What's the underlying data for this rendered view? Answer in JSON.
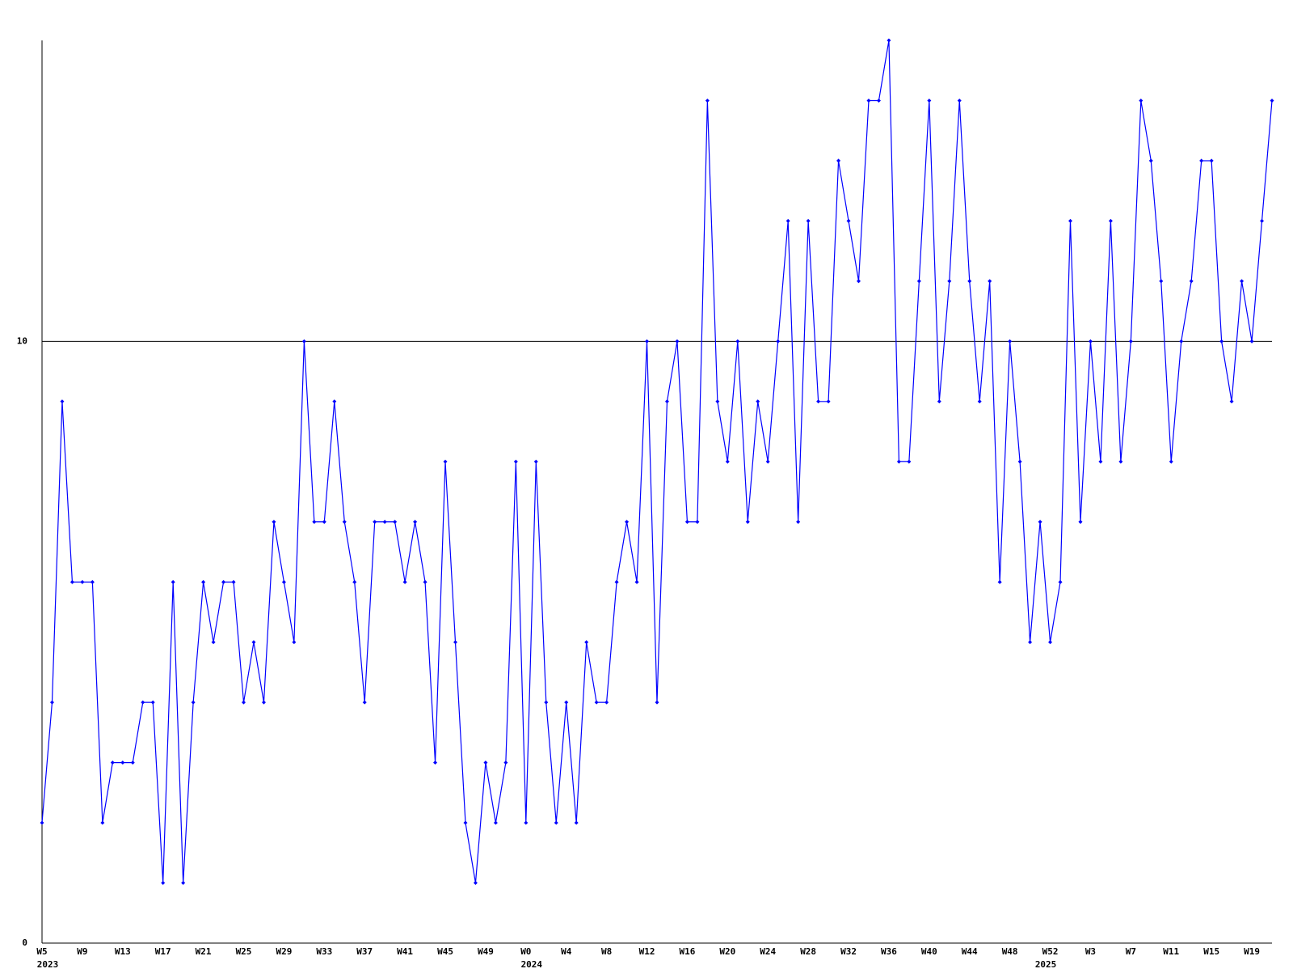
{
  "chart_data": {
    "type": "line",
    "categories": [
      "W5",
      null,
      null,
      null,
      "W9",
      null,
      null,
      null,
      "W13",
      null,
      null,
      null,
      "W17",
      null,
      null,
      null,
      "W21",
      null,
      null,
      null,
      "W25",
      null,
      null,
      null,
      "W29",
      null,
      null,
      null,
      "W33",
      null,
      null,
      null,
      "W37",
      null,
      null,
      null,
      "W41",
      null,
      null,
      null,
      "W45",
      null,
      null,
      null,
      "W49",
      null,
      null,
      null,
      "W0",
      null,
      null,
      null,
      "W4",
      null,
      null,
      null,
      "W8",
      null,
      null,
      null,
      "W12",
      null,
      null,
      null,
      "W16",
      null,
      null,
      null,
      "W20",
      null,
      null,
      null,
      "W24",
      null,
      null,
      null,
      "W28",
      null,
      null,
      null,
      "W32",
      null,
      null,
      null,
      "W36",
      null,
      null,
      null,
      "W40",
      null,
      null,
      null,
      "W44",
      null,
      null,
      null,
      "W48",
      null,
      null,
      null,
      "W52",
      null,
      null,
      null,
      "W3",
      null,
      null,
      null,
      "W7",
      null,
      null,
      null,
      "W11",
      null,
      null,
      null,
      "W15",
      null,
      null,
      null,
      "W19",
      null,
      null
    ],
    "years": [
      "2023",
      null,
      null,
      null,
      null,
      null,
      null,
      null,
      null,
      null,
      null,
      null,
      null,
      null,
      null,
      null,
      null,
      null,
      null,
      null,
      null,
      null,
      null,
      null,
      null,
      null,
      null,
      null,
      null,
      null,
      null,
      null,
      null,
      null,
      null,
      null,
      null,
      null,
      null,
      null,
      null,
      null,
      null,
      null,
      null,
      null,
      null,
      null,
      "2024",
      null,
      null,
      null,
      null,
      null,
      null,
      null,
      null,
      null,
      null,
      null,
      null,
      null,
      null,
      null,
      null,
      null,
      null,
      null,
      null,
      null,
      null,
      null,
      null,
      null,
      null,
      null,
      null,
      null,
      null,
      null,
      null,
      null,
      null,
      null,
      null,
      null,
      null,
      null,
      null,
      null,
      null,
      null,
      null,
      null,
      null,
      null,
      null,
      null,
      null,
      "2025",
      null,
      null,
      null,
      null,
      null,
      null,
      null,
      null,
      null,
      null,
      null,
      null,
      null,
      null,
      null,
      null,
      null,
      null,
      null,
      null
    ],
    "series": [
      {
        "color": "#0000ff",
        "values": [
          2,
          4,
          9,
          6,
          6,
          6,
          2,
          3,
          3,
          3,
          4,
          4,
          1,
          6,
          1,
          4,
          6,
          5,
          6,
          6,
          4,
          5,
          4,
          7,
          6,
          5,
          10,
          7,
          7,
          9,
          7,
          6,
          4,
          7,
          7,
          7,
          6,
          7,
          6,
          3,
          8,
          5,
          2,
          1,
          3,
          2,
          3,
          8,
          2,
          8,
          4,
          2,
          4,
          2,
          5,
          4,
          4,
          6,
          7,
          6,
          10,
          4,
          9,
          10,
          7,
          7,
          14,
          9,
          8,
          10,
          7,
          9,
          8,
          10,
          12,
          7,
          12,
          9,
          9,
          13,
          12,
          11,
          14,
          14,
          15,
          8,
          8,
          11,
          14,
          9,
          11,
          14,
          11,
          9,
          11,
          6,
          10,
          8,
          5,
          7,
          5,
          6,
          12,
          7,
          10,
          8,
          12,
          8,
          10,
          14,
          13,
          11,
          8,
          10,
          11,
          13,
          13,
          10,
          9,
          11,
          10,
          12,
          14
        ]
      }
    ],
    "ylim": [
      0,
      15
    ],
    "yticks": [
      0,
      10
    ],
    "grid": true
  }
}
